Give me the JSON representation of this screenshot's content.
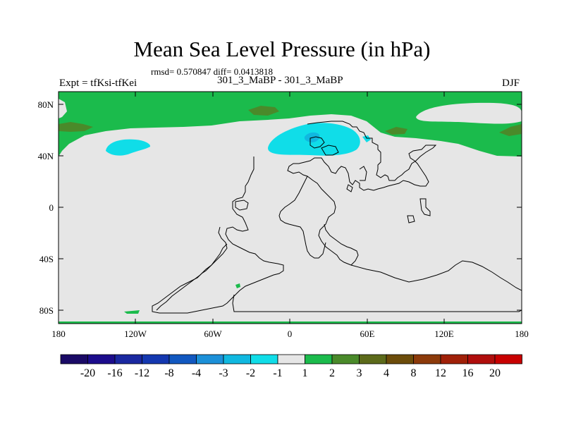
{
  "title": "Mean Sea Level Pressure (in hPa)",
  "stats": "rmsd= 0.570847  diff= 0.0413818",
  "left_label": "Expt = tfKsi-tfKei",
  "center_label": "301_3_MaBP - 301_3_MaBP",
  "right_label": "DJF",
  "y_ticks": [
    "80N",
    "40N",
    "0",
    "40S",
    "80S"
  ],
  "x_ticks": [
    "180",
    "120W",
    "60W",
    "0",
    "60E",
    "120E",
    "180"
  ],
  "colorbar": {
    "labels": [
      "-20",
      "-16",
      "-12",
      "-8",
      "-4",
      "-3",
      "-2",
      "-1",
      "1",
      "2",
      "3",
      "4",
      "8",
      "12",
      "16",
      "20"
    ],
    "colors": [
      "#1a0a66",
      "#1c0c8c",
      "#1a28a0",
      "#1438b0",
      "#1258c0",
      "#1c90d8",
      "#10b8e0",
      "#10dde8",
      "#e6e6e6",
      "#1bbb4c",
      "#4a8a2a",
      "#5c6a1a",
      "#6c4c0a",
      "#8c3a0a",
      "#a02008",
      "#b00e0c",
      "#c80000"
    ]
  },
  "map": {
    "background_color": "#e6e6e6",
    "coast_color": "#000000"
  }
}
